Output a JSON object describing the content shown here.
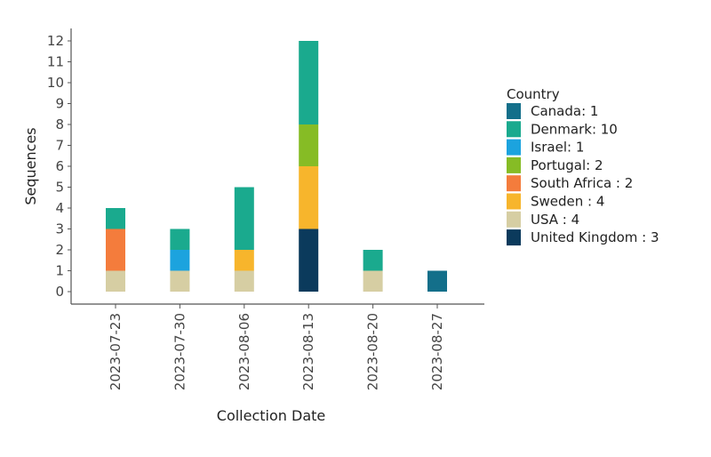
{
  "chart_data": {
    "type": "bar",
    "stacked": true,
    "xlabel": "Collection Date",
    "ylabel": "Sequences",
    "ylim": [
      0,
      12
    ],
    "yticks": [
      "0",
      "1",
      "2",
      "3",
      "4",
      "5",
      "6",
      "7",
      "8",
      "9",
      "10",
      "11",
      "12"
    ],
    "categories": [
      "2023-07-23",
      "2023-07-30",
      "2023-08-06",
      "2023-08-13",
      "2023-08-20",
      "2023-08-27"
    ],
    "legend_title": "Country",
    "legend_position": "right",
    "grid": false,
    "series": [
      {
        "key": "usa",
        "name": "USA : 4",
        "color": "#d6ceA3",
        "values": [
          1,
          1,
          1,
          0,
          1,
          0
        ]
      },
      {
        "key": "uk",
        "name": "United Kingdom : 3",
        "color": "#0b3a5c",
        "values": [
          0,
          0,
          0,
          3,
          0,
          0
        ]
      },
      {
        "key": "south_africa",
        "name": "South Africa : 2",
        "color": "#f47c3c",
        "values": [
          2,
          0,
          0,
          0,
          0,
          0
        ]
      },
      {
        "key": "israel",
        "name": "Israel: 1",
        "color": "#1ca3de",
        "values": [
          0,
          1,
          0,
          0,
          0,
          0
        ]
      },
      {
        "key": "sweden",
        "name": "Sweden : 4",
        "color": "#f7b52c",
        "values": [
          0,
          0,
          1,
          3,
          0,
          0
        ]
      },
      {
        "key": "portugal",
        "name": "Portugal: 2",
        "color": "#86bc25",
        "values": [
          0,
          0,
          0,
          2,
          0,
          0
        ]
      },
      {
        "key": "denmark",
        "name": "Denmark: 10",
        "color": "#1aaa8e",
        "values": [
          1,
          1,
          3,
          4,
          1,
          0
        ]
      },
      {
        "key": "canada",
        "name": "Canada: 1",
        "color": "#136f8a",
        "values": [
          0,
          0,
          0,
          0,
          0,
          1
        ]
      }
    ],
    "legend_order": [
      "canada",
      "denmark",
      "israel",
      "portugal",
      "south_africa",
      "sweden",
      "usa",
      "uk"
    ]
  }
}
